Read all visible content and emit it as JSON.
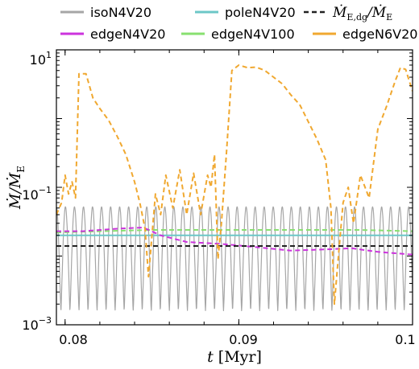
{
  "chart_data": {
    "type": "line",
    "xlabel": "t [Myr]",
    "ylabel": "Ṁ/Ṁ_E",
    "xlim": [
      0.0795,
      0.1
    ],
    "ylim_log10": [
      -3,
      1
    ],
    "y_scale": "log",
    "x_ticks": [
      0.08,
      0.09,
      0.1
    ],
    "x_tick_labels": [
      "0.08",
      "0.09",
      "0.1"
    ],
    "y_ticks": [
      10,
      0.1,
      0.001
    ],
    "y_tick_labels_mantissa": [
      "10",
      "10",
      "10"
    ],
    "y_tick_labels_exponent": [
      "1",
      "−1",
      "−3"
    ],
    "legend_position": "top, above plot, 3 columns",
    "legend": [
      {
        "label": "isoN4V20",
        "color": "#a6a6a6",
        "dash": "solid"
      },
      {
        "label": "poleN4V20",
        "color": "#6cc7c7",
        "dash": "solid"
      },
      {
        "label": "Ṁ_E,dg/Ṁ_E",
        "color": "#222222",
        "dash": "dashed"
      },
      {
        "label": "edgeN4V20",
        "color": "#cc33dd",
        "dash": "solid"
      },
      {
        "label": "edgeN4V100",
        "color": "#88e070",
        "dash": "solid"
      },
      {
        "label": "edgeN6V20",
        "color": "#f0a830",
        "dash": "solid"
      }
    ],
    "series": [
      {
        "name": "isoN4V20",
        "color": "#a6a6a6",
        "oscillation": {
          "min": 0.0016,
          "max": 0.052,
          "period_myr": 0.00052,
          "start": 0.0795,
          "end": 0.1
        }
      },
      {
        "name": "poleN4V20",
        "color": "#6cc7c7",
        "x": [
          0.0795,
          0.1
        ],
        "y": [
          0.02,
          0.02
        ]
      },
      {
        "name": "Ṁ_E,dg/Ṁ_E",
        "color": "#222222",
        "x": [
          0.0795,
          0.1
        ],
        "y": [
          0.014,
          0.014
        ]
      },
      {
        "name": "edgeN4V20",
        "color": "#cc33dd",
        "x": [
          0.0795,
          0.081,
          0.083,
          0.0845,
          0.0855,
          0.087,
          0.089,
          0.091,
          0.093,
          0.095,
          0.0965,
          0.098,
          0.1
        ],
        "y": [
          0.023,
          0.023,
          0.025,
          0.026,
          0.02,
          0.016,
          0.015,
          0.0135,
          0.012,
          0.0125,
          0.013,
          0.0115,
          0.0105
        ]
      },
      {
        "name": "edgeN4V100",
        "color": "#88e070",
        "x": [
          0.0795,
          0.082,
          0.085,
          0.088,
          0.091,
          0.094,
          0.097,
          0.1
        ],
        "y": [
          0.022,
          0.023,
          0.024,
          0.024,
          0.024,
          0.024,
          0.024,
          0.023
        ]
      },
      {
        "name": "edgeN6V20",
        "color": "#f0a830",
        "x": [
          0.0795,
          0.0798,
          0.08,
          0.0802,
          0.0804,
          0.0806,
          0.0808,
          0.0812,
          0.0816,
          0.082,
          0.0825,
          0.083,
          0.0835,
          0.084,
          0.0843,
          0.0846,
          0.0848,
          0.085,
          0.0852,
          0.0855,
          0.0858,
          0.0862,
          0.0866,
          0.087,
          0.0874,
          0.0878,
          0.0882,
          0.0884,
          0.0886,
          0.0888,
          0.089,
          0.0893,
          0.0896,
          0.09,
          0.0905,
          0.091,
          0.0915,
          0.092,
          0.0925,
          0.093,
          0.0935,
          0.094,
          0.0945,
          0.095,
          0.0953,
          0.0955,
          0.0957,
          0.096,
          0.0963,
          0.0966,
          0.097,
          0.0975,
          0.098,
          0.0985,
          0.099,
          0.0993,
          0.0996,
          0.0999,
          0.1
        ],
        "y": [
          0.04,
          0.06,
          0.15,
          0.08,
          0.12,
          0.07,
          4.5,
          4.5,
          2.0,
          1.4,
          0.95,
          0.55,
          0.3,
          0.12,
          0.06,
          0.025,
          0.005,
          0.02,
          0.08,
          0.04,
          0.15,
          0.05,
          0.18,
          0.04,
          0.16,
          0.04,
          0.15,
          0.1,
          0.3,
          0.009,
          0.03,
          0.35,
          5.0,
          6.0,
          5.5,
          5.6,
          5.0,
          4.0,
          3.2,
          2.2,
          1.6,
          0.9,
          0.5,
          0.25,
          0.05,
          0.002,
          0.008,
          0.06,
          0.1,
          0.03,
          0.15,
          0.07,
          0.7,
          1.5,
          3.5,
          5.5,
          5.2,
          3.0,
          2.5
        ]
      }
    ]
  }
}
